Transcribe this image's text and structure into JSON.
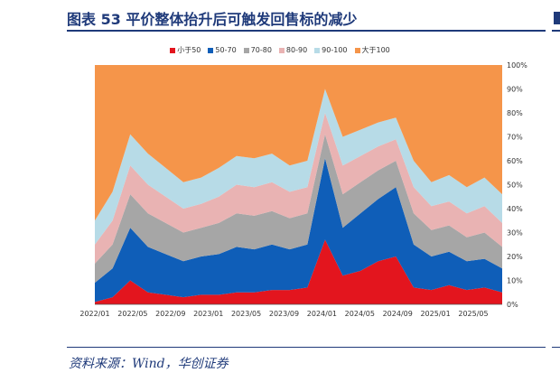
{
  "title": "图表 53   平价整体抬升后可触发回售标的减少",
  "source": "资料来源：Wind，华创证券",
  "chart_data": {
    "type": "area",
    "stacked": true,
    "normalized": true,
    "title": "平价整体抬升后可触发回售标的减少",
    "xlabel": "",
    "ylabel": "",
    "ylim": [
      0,
      100
    ],
    "yticks": [
      "0%",
      "10%",
      "20%",
      "30%",
      "40%",
      "50%",
      "60%",
      "70%",
      "80%",
      "90%",
      "100%"
    ],
    "xticks": [
      "2022/01",
      "2022/05",
      "2022/09",
      "2023/01",
      "2023/05",
      "2023/09",
      "2024/01",
      "2024/05",
      "2024/09",
      "2025/01",
      "2025/05"
    ],
    "legend_position": "top",
    "x": [
      "2022/01",
      "2022/03",
      "2022/05",
      "2022/07",
      "2022/09",
      "2022/11",
      "2023/01",
      "2023/03",
      "2023/05",
      "2023/07",
      "2023/09",
      "2023/11",
      "2024/01",
      "2024/02",
      "2024/03",
      "2024/05",
      "2024/07",
      "2024/09",
      "2024/10",
      "2024/11",
      "2025/01",
      "2025/03",
      "2025/05",
      "2025/07"
    ],
    "series": [
      {
        "name": "小于50",
        "color": "#e3151e",
        "values": [
          1,
          3,
          10,
          5,
          4,
          3,
          4,
          4,
          5,
          5,
          6,
          6,
          7,
          27,
          12,
          14,
          18,
          20,
          7,
          6,
          8,
          6,
          7,
          5
        ]
      },
      {
        "name": "50-70",
        "color": "#0f5eb8",
        "values": [
          8,
          12,
          22,
          19,
          17,
          15,
          16,
          17,
          19,
          18,
          19,
          17,
          18,
          34,
          20,
          24,
          26,
          29,
          18,
          14,
          14,
          12,
          12,
          10
        ]
      },
      {
        "name": "70-80",
        "color": "#a6a6a6",
        "values": [
          8,
          10,
          14,
          14,
          13,
          12,
          12,
          13,
          14,
          14,
          14,
          13,
          13,
          10,
          14,
          13,
          12,
          11,
          13,
          11,
          11,
          10,
          11,
          9
        ]
      },
      {
        "name": "80-90",
        "color": "#e9b3b3",
        "values": [
          8,
          10,
          12,
          12,
          11,
          10,
          10,
          11,
          12,
          12,
          12,
          11,
          11,
          9,
          12,
          11,
          10,
          9,
          11,
          10,
          10,
          10,
          11,
          10
        ]
      },
      {
        "name": "90-100",
        "color": "#b7dbe7",
        "values": [
          10,
          12,
          13,
          13,
          12,
          11,
          11,
          12,
          12,
          12,
          12,
          11,
          11,
          10,
          12,
          11,
          10,
          9,
          11,
          10,
          11,
          11,
          12,
          12
        ]
      },
      {
        "name": "大于100",
        "color": "#f5954a",
        "values": [
          65,
          53,
          29,
          37,
          43,
          49,
          47,
          43,
          38,
          39,
          37,
          42,
          40,
          10,
          30,
          27,
          24,
          22,
          40,
          49,
          46,
          51,
          47,
          54
        ]
      }
    ]
  }
}
